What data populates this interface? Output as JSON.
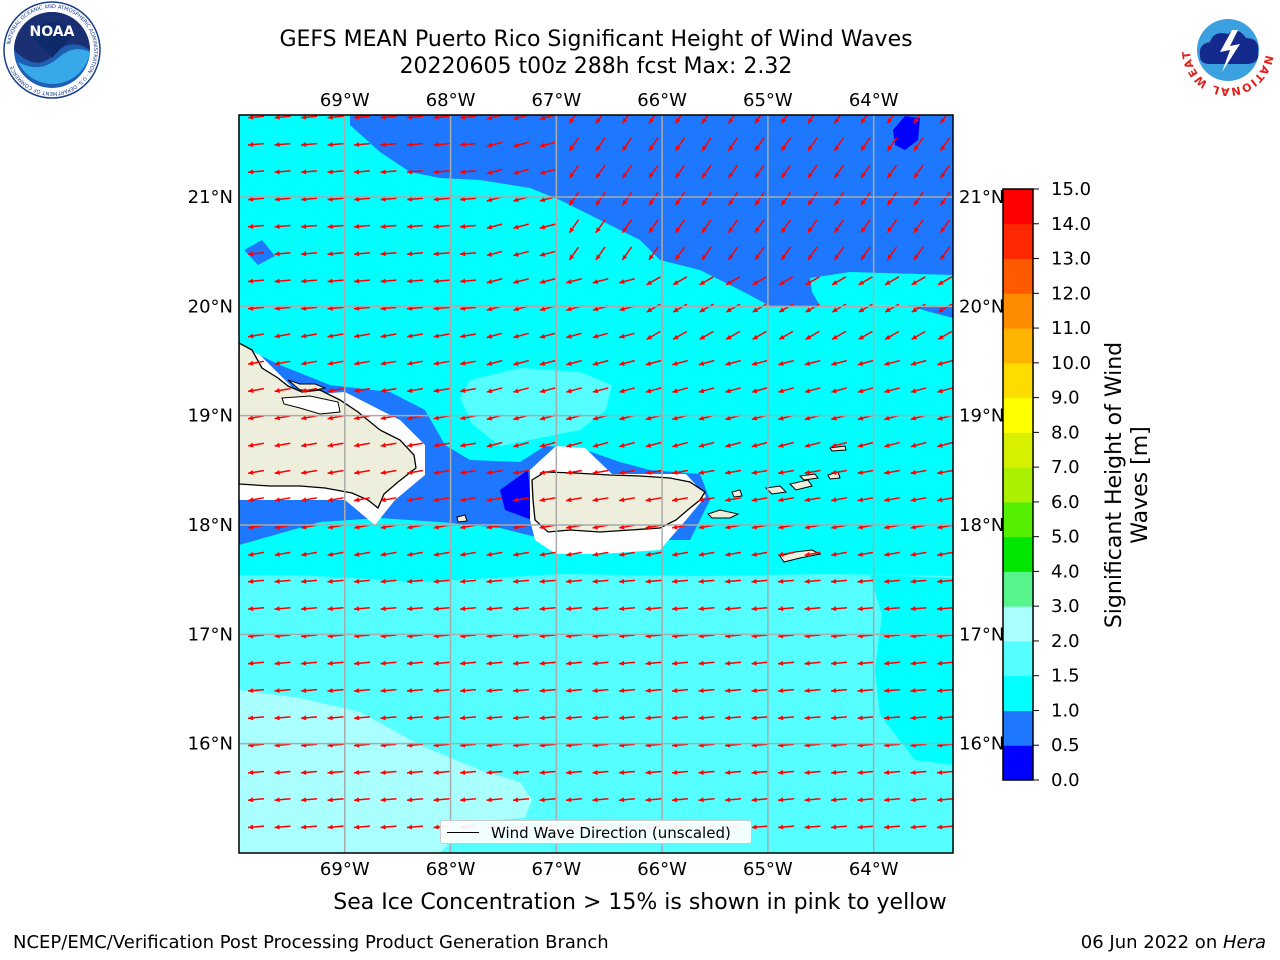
{
  "title": {
    "line1": "GEFS MEAN Puerto Rico Significant Height of Wind Waves",
    "line2": "20220605 t00z 288h fcst   Max: 2.32"
  },
  "logos": {
    "noaa_text": "NOAA",
    "noaa_ring_text": "NATIONAL OCEANIC AND ATMOSPHERIC ADMINISTRATION · U.S. DEPARTMENT OF COMMERCE",
    "nws_ring_text": "NATIONAL WEATHER SERVICE"
  },
  "map": {
    "lon_ticks": [
      "69°W",
      "68°W",
      "67°W",
      "66°W",
      "65°W",
      "64°W"
    ],
    "lat_ticks": [
      "21°N",
      "20°N",
      "19°N",
      "18°N",
      "17°N",
      "16°N"
    ],
    "lon_range": [
      -70.0,
      -63.25
    ],
    "lat_range": [
      15.0,
      21.75
    ],
    "lon_values": [
      -69,
      -68,
      -67,
      -66,
      -65,
      -64
    ],
    "lat_values": [
      21,
      20,
      19,
      18,
      17,
      16
    ],
    "arrow_color": "#ff0000",
    "land_color": "#eeeedd",
    "grid": true
  },
  "colorbar": {
    "label": "Significant Height of Wind Waves [m]",
    "label_line1": "Significant Height of Wind",
    "label_line2": "Waves [m]",
    "ticks": [
      "15.0",
      "14.0",
      "13.0",
      "12.0",
      "11.0",
      "10.0",
      "9.0",
      "8.0",
      "7.0",
      "6.0",
      "5.0",
      "4.0",
      "3.0",
      "2.0",
      "1.5",
      "1.0",
      "0.5",
      "0.0"
    ],
    "colors": [
      "#0000ff",
      "#1e78ff",
      "#00ffff",
      "#55ffff",
      "#aaffff",
      "#55f58c",
      "#00e600",
      "#55f000",
      "#aaf000",
      "#d7f000",
      "#ffff00",
      "#ffdc00",
      "#ffb400",
      "#ff8c00",
      "#ff5a00",
      "#ff2800",
      "#ff0000"
    ]
  },
  "legend": {
    "label": "Wind Wave Direction (unscaled)"
  },
  "footer": {
    "note": "Sea Ice Concentration > 15% is shown in pink to yellow",
    "left": "NCEP/EMC/Verification Post Processing Product Generation Branch",
    "right_prefix": "06 Jun 2022 on ",
    "right_host": "Hera"
  }
}
